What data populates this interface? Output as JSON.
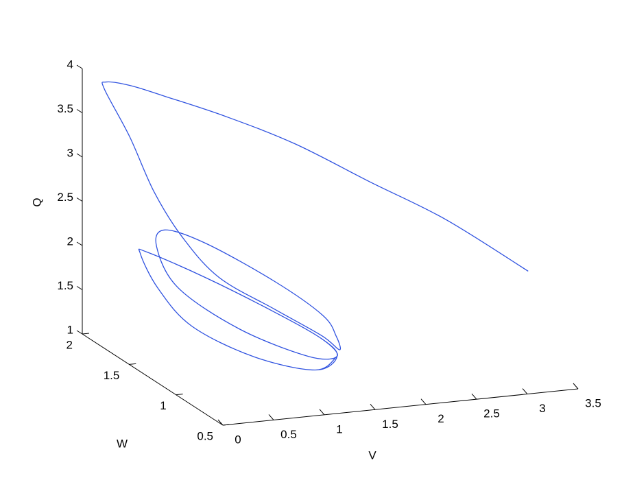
{
  "chart_data": {
    "type": "line3d",
    "xlabel": "V",
    "ylabel": "W",
    "zlabel": "Q",
    "color": "#2f52e0",
    "xlim": [
      0,
      3.5
    ],
    "ylim": [
      0.5,
      2
    ],
    "zlim": [
      1,
      4
    ],
    "xticks": [
      0,
      0.5,
      1,
      1.5,
      2,
      2.5,
      3,
      3.5
    ],
    "yticks": [
      0.5,
      1,
      1.5,
      2
    ],
    "zticks": [
      1,
      1.5,
      2,
      2.5,
      3,
      3.5,
      4
    ],
    "x": [
      3.47,
      2.75,
      2.1,
      1.45,
      0.86,
      0.35,
      0.2,
      0.05,
      0.08,
      0.33,
      0.57,
      0.8,
      1.07,
      1.52,
      1.9,
      1.75,
      1.67,
      1.63,
      1.34,
      0.94,
      0.72,
      0.64,
      0.76,
      1.09,
      1.54,
      1.68,
      1.58,
      1.25,
      0.85,
      0.5,
      0.48,
      0.56,
      0.71,
      1.14,
      1.51,
      1.68,
      1.58,
      1.25,
      0.85,
      0.5,
      0.48,
      0.56,
      0.71,
      1.14,
      1.51,
      1.68
    ],
    "y": [
      1.0,
      1.1,
      1.2,
      1.3,
      1.4,
      1.5,
      1.7,
      1.8,
      1.85,
      1.85,
      1.85,
      1.8,
      1.7,
      1.6,
      1.5,
      1.15,
      1.1,
      1.2,
      1.4,
      1.7,
      1.9,
      1.9,
      1.8,
      1.5,
      1.25,
      1.1,
      1.15,
      1.3,
      1.6,
      1.85,
      1.9,
      1.8,
      1.6,
      1.4,
      1.15,
      1.1,
      1.15,
      1.3,
      1.6,
      1.85,
      1.9,
      1.8,
      1.6,
      1.4,
      1.15,
      1.1
    ],
    "z": [
      1.99,
      2.59,
      3.02,
      3.46,
      3.77,
      3.99,
      3.99,
      3.98,
      3.86,
      3.29,
      2.64,
      2.14,
      1.72,
      1.38,
      1.1,
      1.2,
      1.4,
      1.57,
      1.85,
      2.12,
      2.16,
      1.98,
      1.57,
      1.27,
      1.08,
      1.17,
      1.34,
      1.58,
      1.81,
      1.97,
      1.92,
      1.59,
      1.28,
      1.02,
      1.0,
      1.17,
      1.34,
      1.58,
      1.81,
      1.97,
      1.92,
      1.59,
      1.28,
      1.02,
      1.0,
      1.17
    ]
  }
}
